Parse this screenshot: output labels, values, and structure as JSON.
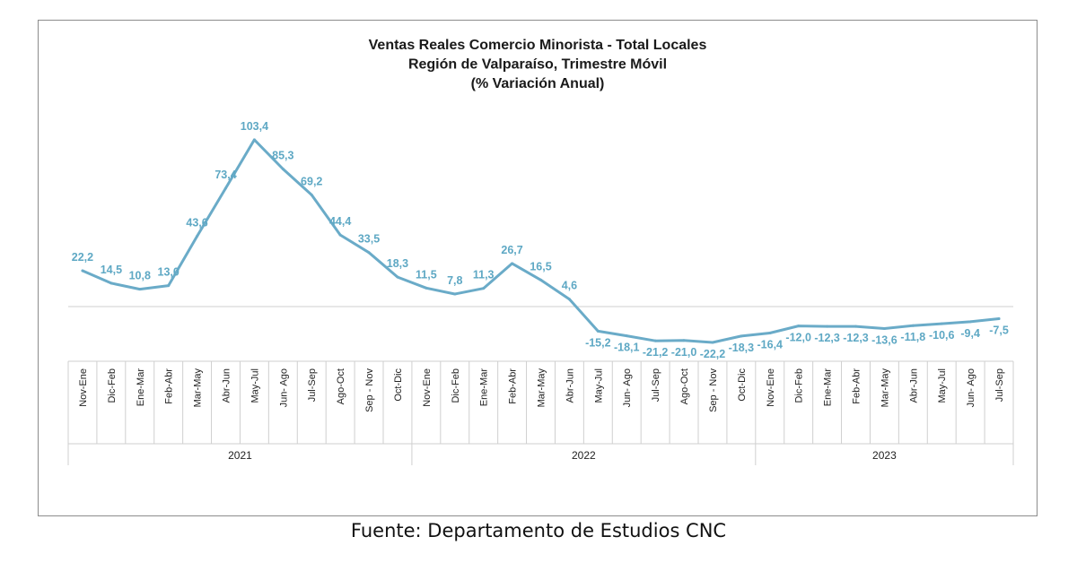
{
  "chart_data": {
    "type": "line",
    "title_lines": [
      "Ventas Reales Comercio Minorista - Total Locales",
      "Región de Valparaíso, Trimestre Móvil",
      "(% Variación Anual)"
    ],
    "categories": [
      "Nov-Ene",
      "Dic-Feb",
      "Ene-Mar",
      "Feb-Abr",
      "Mar-May",
      "Abr-Jun",
      "May-Jul",
      "Jun- Ago",
      "Jul-Sep",
      "Ago-Oct",
      "Sep - Nov",
      "Oct-Dic",
      "Nov-Ene",
      "Dic-Feb",
      "Ene-Mar",
      "Feb-Abr",
      "Mar-May",
      "Abr-Jun",
      "May-Jul",
      "Jun- Ago",
      "Jul-Sep",
      "Ago-Oct",
      "Sep - Nov",
      "Oct-Dic",
      "Nov-Ene",
      "Dic-Feb",
      "Ene-Mar",
      "Feb-Abr",
      "Mar-May",
      "Abr-Jun",
      "May-Jul",
      "Jun- Ago",
      "Jul-Sep"
    ],
    "values": [
      22.2,
      14.5,
      10.8,
      13.0,
      43.6,
      73.4,
      103.4,
      85.3,
      69.2,
      44.4,
      33.5,
      18.3,
      11.5,
      7.8,
      11.3,
      26.7,
      16.5,
      4.6,
      -15.2,
      -18.1,
      -21.2,
      -21.0,
      -22.2,
      -18.3,
      -16.4,
      -12.0,
      -12.3,
      -12.3,
      -13.6,
      -11.8,
      -10.6,
      -9.4,
      -7.5
    ],
    "value_labels": [
      "22,2",
      "14,5",
      "10,8",
      "13,0",
      "43,6",
      "73,4",
      "103,4",
      "85,3",
      "69,2",
      "44,4",
      "33,5",
      "18,3",
      "11,5",
      "7,8",
      "11,3",
      "26,7",
      "16,5",
      "4,6",
      "-15,2",
      "-18,1",
      "-21,2",
      "-21,0",
      "-22,2",
      "-18,3",
      "-16,4",
      "-12,0",
      "-12,3",
      "-12,3",
      "-13,6",
      "-11,8",
      "-10,6",
      "-9,4",
      "-7,5"
    ],
    "groups": [
      {
        "label": "2021",
        "count": 12
      },
      {
        "label": "2022",
        "count": 12
      },
      {
        "label": "2023",
        "count": 9
      }
    ],
    "grid": false,
    "line_color": "#6aabc8",
    "label_color": "#5ea8c4"
  },
  "source": "Fuente: Departamento de Estudios CNC"
}
